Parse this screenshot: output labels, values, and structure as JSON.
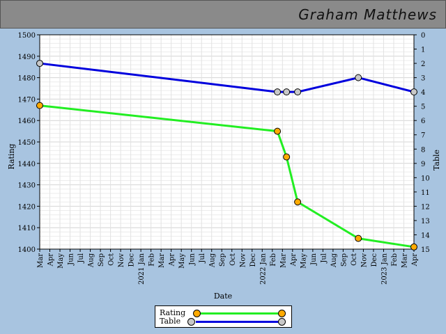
{
  "header": {
    "title": "Graham Matthews"
  },
  "chart_data": {
    "type": "line",
    "xlabel": "Date",
    "ylabel": "Rating",
    "y2label": "Table",
    "ylim": [
      1400,
      1500
    ],
    "y2lim": [
      0,
      15
    ],
    "y2_reversed": true,
    "grid": true,
    "legend_position": "bottom-center",
    "x_tick_labels": [
      "Mar",
      "Apr",
      "May",
      "Jun",
      "Jul",
      "Aug",
      "Sep",
      "Oct",
      "Nov",
      "Dec",
      "2021 Jan",
      "Feb",
      "Mar",
      "Apr",
      "May",
      "Jun",
      "Jul",
      "Aug",
      "Sep",
      "Oct",
      "Nov",
      "Dec",
      "2022 Jan",
      "Feb",
      "Mar",
      "Apr",
      "May",
      "Jun",
      "Jul",
      "Aug",
      "Sep",
      "Oct",
      "Nov",
      "Dec",
      "2023 Jan",
      "Feb",
      "Mar",
      "Apr"
    ],
    "series": [
      {
        "name": "Rating",
        "axis": "left",
        "line_color": "#22ee22",
        "marker_color": "#ffaa00",
        "points": [
          {
            "x": 0.0,
            "y": 1467
          },
          {
            "x": 23.5,
            "y": 1455
          },
          {
            "x": 24.4,
            "y": 1443
          },
          {
            "x": 25.5,
            "y": 1422
          },
          {
            "x": 31.5,
            "y": 1405
          },
          {
            "x": 37.0,
            "y": 1401
          }
        ]
      },
      {
        "name": "Table",
        "axis": "right",
        "line_color": "#0000dd",
        "marker_color": "#c8c8c8",
        "points": [
          {
            "x": 0.0,
            "y": 2
          },
          {
            "x": 23.5,
            "y": 4
          },
          {
            "x": 24.4,
            "y": 4
          },
          {
            "x": 25.5,
            "y": 4
          },
          {
            "x": 31.5,
            "y": 3
          },
          {
            "x": 37.0,
            "y": 4
          }
        ]
      }
    ]
  },
  "legend": {
    "items": [
      {
        "label": "Rating",
        "line_color": "#22ee22",
        "marker_color": "#ffaa00"
      },
      {
        "label": "Table",
        "line_color": "#0000dd",
        "marker_color": "#c8c8c8"
      }
    ]
  }
}
